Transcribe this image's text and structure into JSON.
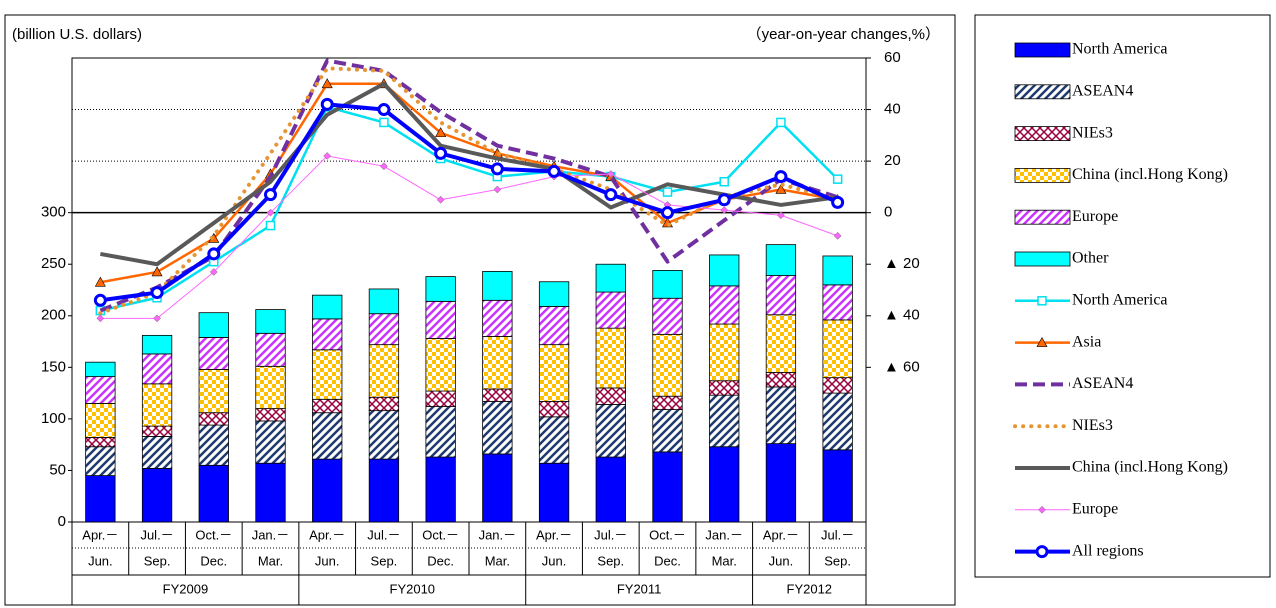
{
  "chart_data": {
    "type": "combo",
    "y_label": "(billion U.S. dollars)",
    "y2_label": "（year-on-year changes,%）",
    "categories": [
      [
        "Apr.－",
        "Jun."
      ],
      [
        "Jul.－",
        "Sep."
      ],
      [
        "Oct.－",
        "Dec."
      ],
      [
        "Jan.－",
        "Mar."
      ],
      [
        "Apr.－",
        "Jun."
      ],
      [
        "Jul.－",
        "Sep."
      ],
      [
        "Oct.－",
        "Dec."
      ],
      [
        "Jan.－",
        "Mar."
      ],
      [
        "Apr.－",
        "Jun."
      ],
      [
        "Jul.－",
        "Sep."
      ],
      [
        "Oct.－",
        "Dec."
      ],
      [
        "Jan.－",
        "Mar."
      ],
      [
        "Apr.－",
        "Jun."
      ],
      [
        "Jul.－",
        "Sep."
      ]
    ],
    "fiscal_years": [
      "FY2009",
      "FY2010",
      "FY2011",
      "FY2012"
    ],
    "ylim": [
      0,
      450
    ],
    "yticks": [
      0,
      50,
      100,
      150,
      200,
      250,
      300
    ],
    "y2lim": [
      -120,
      60
    ],
    "y2ticks": [
      60,
      40,
      20,
      0,
      {
        "value": -20,
        "label": "▲ 20"
      },
      {
        "value": -40,
        "label": "▲ 40"
      },
      {
        "value": -60,
        "label": "▲ 60"
      }
    ],
    "grid": true,
    "series": [
      {
        "name": "North America",
        "type": "bar",
        "color": "#0000ff",
        "pattern": "solid",
        "values": [
          45,
          52,
          55,
          57,
          61,
          61,
          63,
          66,
          57,
          63,
          68,
          73,
          76,
          70
        ]
      },
      {
        "name": "ASEAN4",
        "type": "bar",
        "color": "#1f3a6e",
        "pattern": "diagonal",
        "values": [
          28,
          31,
          39,
          41,
          45,
          47,
          49,
          51,
          45,
          51,
          41,
          50,
          55,
          55
        ]
      },
      {
        "name": "NIEs3",
        "type": "bar",
        "color": "#99003d",
        "pattern": "cross",
        "values": [
          9,
          10,
          12,
          12,
          13,
          13,
          15,
          12,
          15,
          16,
          13,
          14,
          14,
          15
        ]
      },
      {
        "name": "China (incl.Hong Kong)",
        "type": "bar",
        "color": "#ffc000",
        "pattern": "checker",
        "values": [
          33,
          41,
          42,
          41,
          48,
          51,
          51,
          51,
          55,
          58,
          60,
          55,
          56,
          56
        ]
      },
      {
        "name": "Europe",
        "type": "bar",
        "color": "#cc33ff",
        "pattern": "diagonal",
        "values": [
          26,
          29,
          31,
          32,
          30,
          30,
          36,
          35,
          37,
          35,
          35,
          37,
          38,
          34
        ]
      },
      {
        "name": "Other",
        "type": "bar",
        "color": "#00ffff",
        "pattern": "solid",
        "values": [
          14,
          18,
          24,
          23,
          23,
          24,
          24,
          28,
          24,
          27,
          27,
          30,
          30,
          28
        ]
      },
      {
        "name": "North America",
        "type": "line",
        "axis": "y2",
        "color": "#00e0f0",
        "marker": "square",
        "values": [
          -38,
          -33,
          -19,
          -5,
          41,
          35,
          21,
          14,
          16,
          14,
          8,
          12,
          35,
          13
        ]
      },
      {
        "name": "Asia",
        "type": "line",
        "axis": "y2",
        "color": "#ff6600",
        "marker": "triangle",
        "values": [
          -27,
          -23,
          -10,
          15,
          50,
          50,
          31,
          23,
          18,
          14,
          -4,
          5,
          9,
          5
        ]
      },
      {
        "name": "ASEAN4",
        "type": "line",
        "axis": "y2",
        "color": "#7030a0",
        "dash": "dashed",
        "values": [
          -38,
          -29,
          -17,
          14,
          59,
          55,
          39,
          26,
          21,
          14,
          -19,
          -3,
          13,
          6
        ]
      },
      {
        "name": "NIEs3",
        "type": "line",
        "axis": "y2",
        "color": "#e69533",
        "dash": "dotted",
        "values": [
          -39,
          -31,
          -9,
          23,
          56,
          55,
          35,
          23,
          17,
          9,
          -5,
          6,
          11,
          5
        ]
      },
      {
        "name": "China (incl.Hong Kong)",
        "type": "line",
        "axis": "y2",
        "color": "#595959",
        "values": [
          -16,
          -20,
          -4,
          12,
          38,
          50,
          26,
          21,
          17,
          2,
          11,
          7,
          3,
          6
        ]
      },
      {
        "name": "Europe",
        "type": "line",
        "axis": "y2",
        "color": "#ff66ff",
        "marker": "diamond",
        "values": [
          -41,
          -41,
          -23,
          0,
          22,
          18,
          5,
          9,
          14,
          15,
          3,
          1,
          -1,
          -9
        ]
      },
      {
        "name": "All regions",
        "type": "line",
        "axis": "y2",
        "color": "#0000ff",
        "marker": "circle",
        "values": [
          -34,
          -31,
          -16,
          7,
          42,
          40,
          23,
          17,
          16,
          7,
          0,
          5,
          14,
          4
        ]
      }
    ]
  }
}
